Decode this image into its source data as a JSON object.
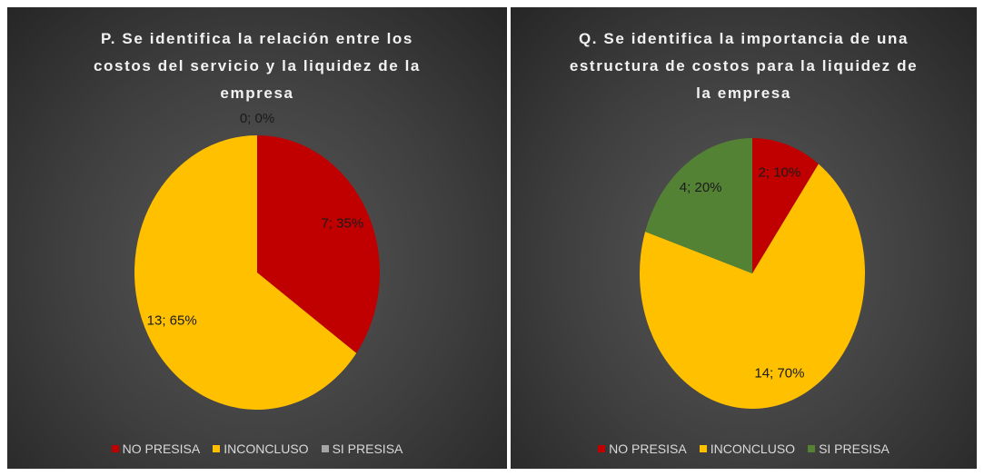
{
  "chart_data": [
    {
      "type": "pie",
      "title": "P. Se identifica la relación entre los costos del servicio y la liquidez de la empresa",
      "categories": [
        "NO PRESISA",
        "INCONCLUSO",
        "SI PRESISA"
      ],
      "values": [
        7,
        13,
        0
      ],
      "value_labels": [
        "7; 35%",
        "13; 65%",
        "0; 0%"
      ],
      "colors": [
        "#c00000",
        "#ffc000",
        "#a5a5a5"
      ],
      "legend": "bottom"
    },
    {
      "type": "pie",
      "title": "Q. Se identifica la importancia de una estructura de costos para la liquidez de la empresa",
      "categories": [
        "NO PRESISA",
        "INCONCLUSO",
        "SI PRESISA"
      ],
      "values": [
        2,
        14,
        4
      ],
      "value_labels": [
        "2; 10%",
        "14; 70%",
        "4; 20%"
      ],
      "colors": [
        "#c00000",
        "#ffc000",
        "#548235"
      ],
      "legend": "bottom"
    }
  ]
}
